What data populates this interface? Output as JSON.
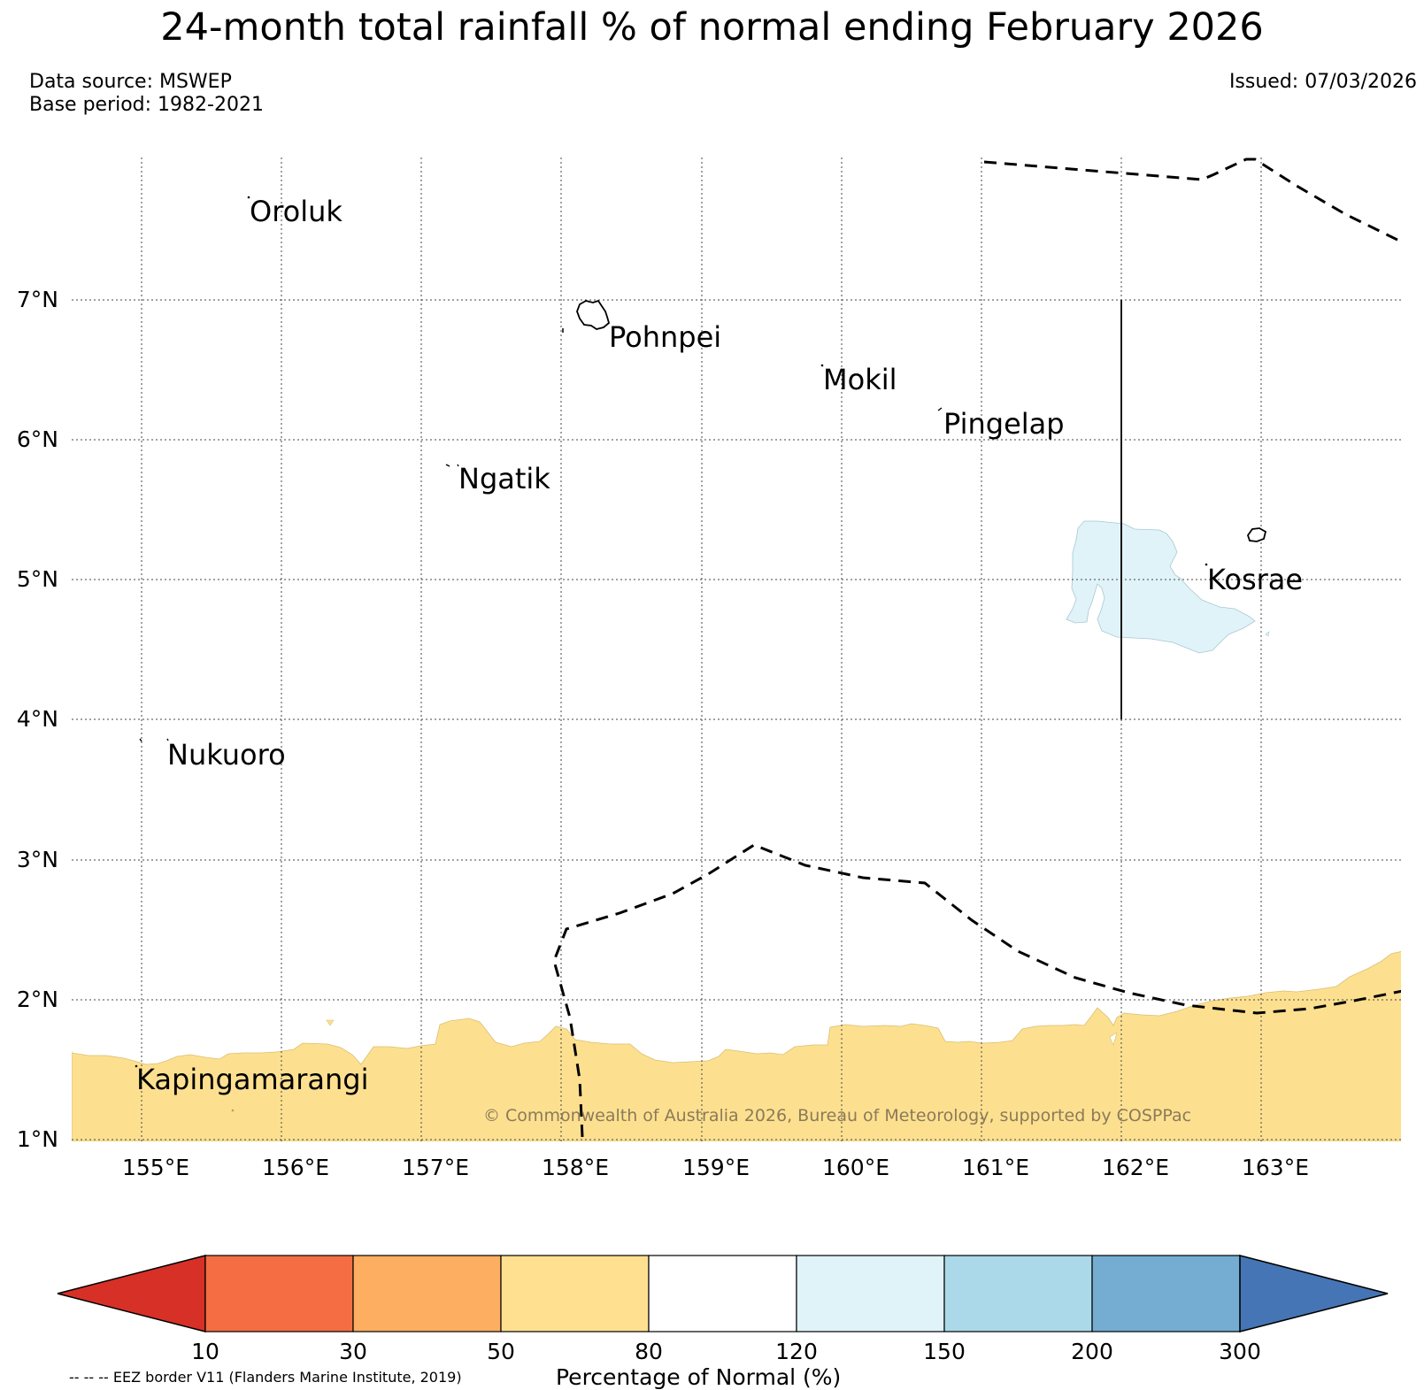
{
  "title": "24-month total rainfall % of normal ending February 2026",
  "data_source": "Data source: MSWEP",
  "base_period": "Base period: 1982-2021",
  "issued": "Issued: 07/03/2026",
  "map": {
    "lon_labels": [
      "155°E",
      "156°E",
      "157°E",
      "158°E",
      "159°E",
      "160°E",
      "161°E",
      "162°E",
      "163°E"
    ],
    "lat_labels": [
      "1°N",
      "2°N",
      "3°N",
      "4°N",
      "5°N",
      "6°N",
      "7°N"
    ],
    "places": [
      "Oroluk",
      "Pohnpei",
      "Mokil",
      "Pingelap",
      "Ngatik",
      "Kosrae",
      "Nukuoro",
      "Kapingamarangi"
    ],
    "copyright": "© Commonwealth of Australia 2026, Bureau of Meteorology, supported by COSPPac",
    "colors": {
      "dry_fill": "#fde08f",
      "wet_fill": "#e0f3f8"
    }
  },
  "colorbar": {
    "label": "Percentage of Normal (%)",
    "ticks": [
      "10",
      "30",
      "50",
      "80",
      "120",
      "150",
      "200",
      "300"
    ],
    "colors": [
      "#d73027",
      "#f46d43",
      "#fdae61",
      "#fee090",
      "#ffffff",
      "#e0f3f8",
      "#abd9e9",
      "#74add1",
      "#4575b4"
    ]
  },
  "eez_note": "-- -- -- EEZ border V11 (Flanders Marine Institute, 2019)"
}
